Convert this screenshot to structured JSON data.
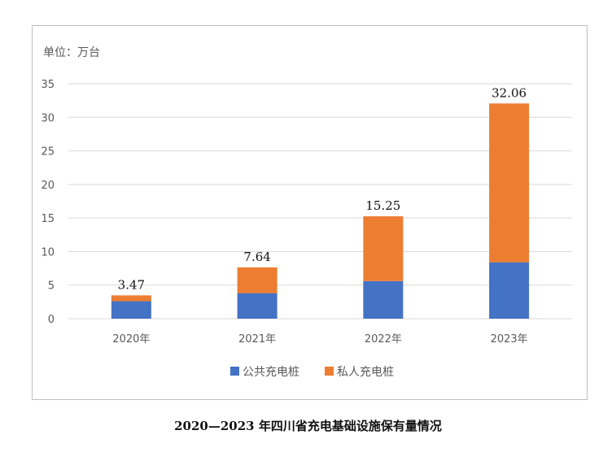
{
  "chart_data": {
    "type": "bar",
    "stacked": true,
    "unit_label": "单位：万台",
    "categories": [
      "2020年",
      "2021年",
      "2022年",
      "2023年"
    ],
    "series": [
      {
        "name": "公共充电桩",
        "values": [
          2.6,
          3.8,
          5.6,
          8.4
        ],
        "color": "#4472C4"
      },
      {
        "name": "私人充电桩",
        "values": [
          0.87,
          3.84,
          9.65,
          23.66
        ],
        "color": "#ED7D31"
      }
    ],
    "totals": [
      "3.47",
      "7.64",
      "15.25",
      "32.06"
    ],
    "yticks": [
      0,
      5,
      10,
      15,
      20,
      25,
      30,
      35
    ],
    "ylim": [
      0,
      35
    ],
    "grid": true,
    "legend_position": "bottom-center"
  },
  "caption": "2020—2023 年四川省充电基础设施保有量情况"
}
